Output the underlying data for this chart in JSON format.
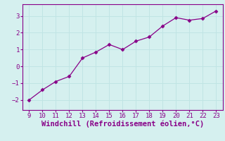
{
  "x": [
    9,
    10,
    11,
    12,
    13,
    14,
    15,
    16,
    17,
    18,
    19,
    20,
    21,
    22,
    23
  ],
  "y": [
    -2.0,
    -1.4,
    -0.9,
    -0.6,
    0.5,
    0.85,
    1.3,
    1.0,
    1.5,
    1.75,
    2.4,
    2.9,
    2.75,
    2.85,
    3.3
  ],
  "xlabel": "Windchill (Refroidissement éolien,°C)",
  "xlim": [
    8.5,
    23.5
  ],
  "ylim": [
    -2.6,
    3.7
  ],
  "yticks": [
    -2,
    -1,
    0,
    1,
    2,
    3
  ],
  "xticks": [
    9,
    10,
    11,
    12,
    13,
    14,
    15,
    16,
    17,
    18,
    19,
    20,
    21,
    22,
    23
  ],
  "line_color": "#880088",
  "marker": "D",
  "marker_size": 2.5,
  "bg_color": "#d5f0ef",
  "grid_color": "#c0e4e4",
  "spine_color": "#880088",
  "label_color": "#880088",
  "tick_fontsize": 6.5,
  "xlabel_fontsize": 7.5,
  "linewidth": 0.9
}
